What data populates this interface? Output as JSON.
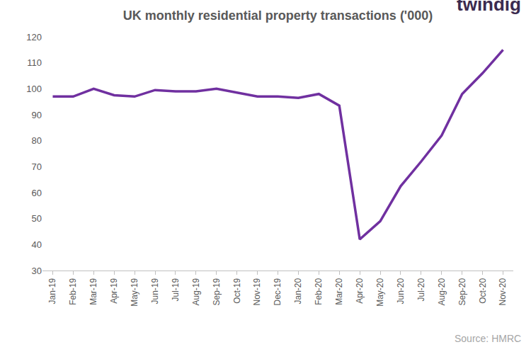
{
  "chart_data": {
    "type": "line",
    "title": "UK monthly residential property transactions ('000)",
    "logo": "twindig",
    "source": "Source: HMRC",
    "categories": [
      "Jan-19",
      "Feb-19",
      "Mar-19",
      "Apr-19",
      "May-19",
      "Jun-19",
      "Jul-19",
      "Aug-19",
      "Sep-19",
      "Oct-19",
      "Nov-19",
      "Dec-19",
      "Jan-20",
      "Feb-20",
      "Mar-20",
      "Apr-20",
      "May-20",
      "Jun-20",
      "Jul-20",
      "Aug-20",
      "Sep-20",
      "Oct-20",
      "Nov-20"
    ],
    "values": [
      97,
      97,
      100,
      97.5,
      97,
      99.5,
      99,
      99,
      100,
      98.5,
      97,
      97,
      96.5,
      98,
      93.5,
      42,
      49,
      62.5,
      72,
      82,
      98,
      106,
      115
    ],
    "color": "#7030a0",
    "ylim": [
      30,
      120
    ],
    "yticks": [
      30,
      40,
      50,
      60,
      70,
      80,
      90,
      100,
      110,
      120
    ],
    "grid": false
  }
}
